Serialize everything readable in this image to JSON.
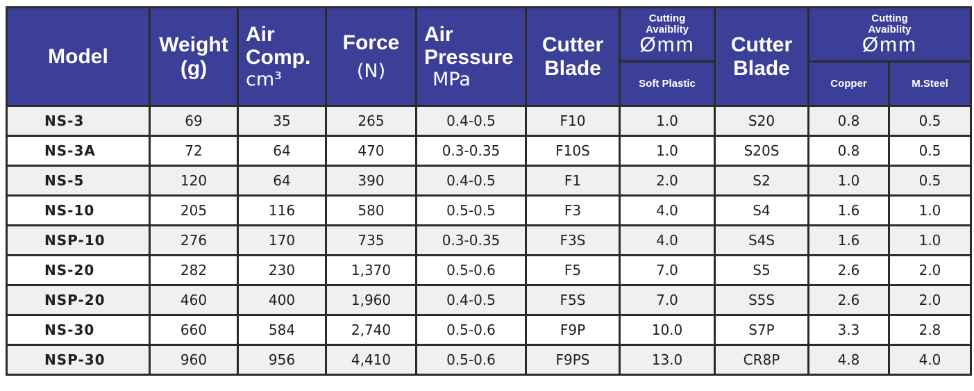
{
  "header": {
    "model": "Model",
    "weight_line1": "Weight",
    "weight_line2": "(g)",
    "air_line1": "Air",
    "air_line2": "Comp.",
    "air_unit": "cm³",
    "force": "Force",
    "force_unit": "(N)",
    "pressure_line1": "Air",
    "pressure_line2": "Pressure",
    "pressure_unit": "MPa",
    "cutter1_line1": "Cutter",
    "cutter1_line2": "Blade",
    "cut1_line1": "Cutting",
    "cut1_line2": "Avaiblity",
    "cut1_unit": "Ømm",
    "cut1_sub": "Soft Plastic",
    "cutter2_line1": "Cutter",
    "cutter2_line2": "Blade",
    "cut2_line1": "Cutting",
    "cut2_line2": "Avaiblity",
    "cut2_unit": "Ømm",
    "cut2_sub1": "Copper",
    "cut2_sub2": "M.Steel"
  },
  "rows": [
    [
      "NS-3",
      "69",
      "35",
      "265",
      "0.4-0.5",
      "F10",
      "1.0",
      "S20",
      "0.8",
      "0.5"
    ],
    [
      "NS-3A",
      "72",
      "64",
      "470",
      "0.3-0.35",
      "F10S",
      "1.0",
      "S20S",
      "0.8",
      "0.5"
    ],
    [
      "NS-5",
      "120",
      "64",
      "390",
      "0.4-0.5",
      "F1",
      "2.0",
      "S2",
      "1.0",
      "0.5"
    ],
    [
      "NS-10",
      "205",
      "116",
      "580",
      "0.5-0.5",
      "F3",
      "4.0",
      "S4",
      "1.6",
      "1.0"
    ],
    [
      "NSP-10",
      "276",
      "170",
      "735",
      "0.3-0.35",
      "F3S",
      "4.0",
      "S4S",
      "1.6",
      "1.0"
    ],
    [
      "NS-20",
      "282",
      "230",
      "1,370",
      "0.5-0.6",
      "F5",
      "7.0",
      "S5",
      "2.6",
      "2.0"
    ],
    [
      "NSP-20",
      "460",
      "400",
      "1,960",
      "0.4-0.5",
      "F5S",
      "7.0",
      "S5S",
      "2.6",
      "2.0"
    ],
    [
      "NS-30",
      "660",
      "584",
      "2,740",
      "0.5-0.6",
      "F9P",
      "10.0",
      "S7P",
      "3.3",
      "2.8"
    ],
    [
      "NSP-30",
      "960",
      "956",
      "4,410",
      "0.5-0.6",
      "F9PS",
      "13.0",
      "CR8P",
      "4.8",
      "4.0"
    ]
  ]
}
